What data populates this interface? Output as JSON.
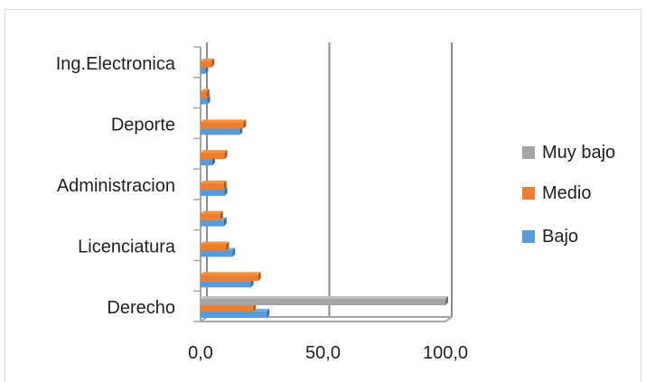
{
  "chart_data": {
    "type": "bar",
    "orientation": "horizontal",
    "style": "3d-clustered",
    "categories": [
      "Derecho",
      "",
      "Licenciatura",
      "",
      "Administracion",
      "",
      "Deporte",
      "",
      "Ing.Electronica"
    ],
    "series": [
      {
        "name": "Bajo",
        "color": "#5b9bd5",
        "values": [
          27.0,
          20.5,
          13.0,
          9.5,
          9.8,
          4.8,
          16.0,
          2.8,
          2.0
        ]
      },
      {
        "name": "Medio",
        "color": "#ed7d31",
        "values": [
          21.5,
          23.5,
          10.5,
          8.0,
          9.5,
          9.8,
          17.5,
          2.5,
          4.5
        ]
      },
      {
        "name": "Muy bajo",
        "color": "#a5a5a5",
        "values": [
          100.0,
          0,
          0,
          0,
          0,
          0,
          0,
          0,
          0
        ]
      }
    ],
    "legend_order": [
      "Muy bajo",
      "Medio",
      "Bajo"
    ],
    "legend_position": "right",
    "x_ticks": [
      "0,0",
      "50,0",
      "100,0"
    ],
    "xlim": [
      0,
      100
    ],
    "grid": true
  }
}
